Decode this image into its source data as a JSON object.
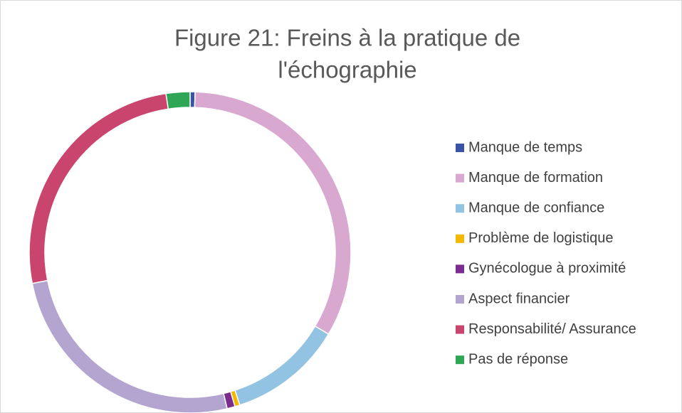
{
  "chart_data": {
    "type": "donut",
    "title": [
      "Figure 21: Freins à la pratique de",
      "l'échographie"
    ],
    "categories": [
      "Manque de temps",
      "Manque de formation",
      "Manque de confiance",
      "Problème de logistique",
      "Gynécologue à proximité",
      "Aspect financier",
      "Responsabilité/ Assurance",
      "Pas de réponse"
    ],
    "values": [
      0.5,
      33,
      11.5,
      0.5,
      0.8,
      25.6,
      25.7,
      2.4
    ],
    "colors": [
      "#3a53a4",
      "#d8a8d0",
      "#92c3e3",
      "#f5b800",
      "#7c2b8e",
      "#b3a4d0",
      "#c9456e",
      "#2fa655"
    ],
    "legend": "right"
  }
}
